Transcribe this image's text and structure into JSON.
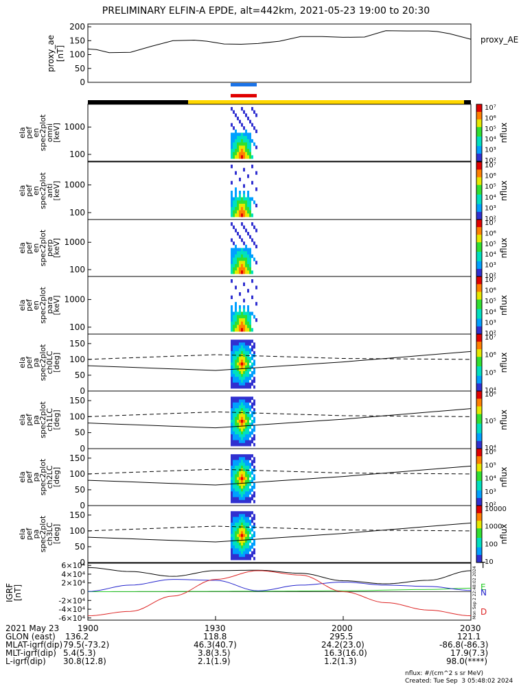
{
  "title": "PRELIMINARY ELFIN-A EPDE, alt=442km, 2021-05-23 19:00 to 20:30",
  "colors": {
    "blue_bar": "#1a73e8",
    "red_bar": "#e00000",
    "night": "#000000",
    "day": "#ffd700"
  },
  "chart_data": [
    {
      "type": "line",
      "id": "proxy_ae",
      "ylabel": [
        "proxy_ae",
        "[nT]"
      ],
      "right_label": "proxy_AE",
      "yticks": [
        "0",
        "50",
        "100",
        "150",
        "200"
      ],
      "ylim": [
        0,
        210
      ],
      "x": [
        0,
        2,
        5,
        10,
        15,
        20,
        25,
        28,
        32,
        36,
        40,
        45,
        50,
        55,
        60,
        65,
        70,
        75,
        80,
        82,
        85,
        88,
        90
      ],
      "y": [
        120,
        118,
        107,
        108,
        130,
        150,
        152,
        148,
        138,
        137,
        140,
        148,
        165,
        165,
        162,
        163,
        186,
        185,
        185,
        183,
        175,
        163,
        155
      ]
    },
    {
      "type": "spectrogram",
      "id": "en_spec_omni",
      "ylabel": [
        "ela",
        "pef",
        "en",
        "spec2plot",
        "omni",
        "[keV]"
      ],
      "yticks": [
        "100",
        "1000"
      ],
      "colorbar_ticks": [
        "10^2",
        "10^3",
        "10^4",
        "10^5",
        "10^6",
        "10^7"
      ],
      "colorbar_label": "nflux"
    },
    {
      "type": "spectrogram",
      "id": "en_spec_anti",
      "ylabel": [
        "ela",
        "pef",
        "en",
        "spec2plot",
        "anti",
        "[keV]"
      ],
      "yticks": [
        "100",
        "1000"
      ],
      "colorbar_ticks": [
        "10^2",
        "10^3",
        "10^4",
        "10^5",
        "10^6",
        "10^7"
      ],
      "colorbar_label": "nflux"
    },
    {
      "type": "spectrogram",
      "id": "en_spec_perp",
      "ylabel": [
        "ela",
        "pef",
        "en",
        "spec2plot",
        "perp",
        "[keV]"
      ],
      "yticks": [
        "100",
        "1000"
      ],
      "colorbar_ticks": [
        "10^2",
        "10^3",
        "10^4",
        "10^5",
        "10^6",
        "10^7"
      ],
      "colorbar_label": "nflux"
    },
    {
      "type": "spectrogram",
      "id": "en_spec_para",
      "ylabel": [
        "ela",
        "pef",
        "en",
        "spec2plot",
        "para",
        "[keV]"
      ],
      "yticks": [
        "100",
        "1000"
      ],
      "colorbar_ticks": [
        "10^2",
        "10^3",
        "10^4",
        "10^5",
        "10^6",
        "10^7"
      ],
      "colorbar_label": "nflux"
    },
    {
      "type": "spectrogram",
      "id": "pa_ch0",
      "ylabel": [
        "ela",
        "pef",
        "pa",
        "spec2plot",
        "ch0LC",
        "[deg]"
      ],
      "yticks": [
        "0",
        "50",
        "100",
        "150"
      ],
      "colorbar_ticks": [
        "10^4",
        "10^5",
        "10^6",
        "10^7"
      ],
      "colorbar_label": "nflux"
    },
    {
      "type": "spectrogram",
      "id": "pa_ch1",
      "ylabel": [
        "ela",
        "pef",
        "pa",
        "spec2plot",
        "ch1LC",
        "[deg]"
      ],
      "yticks": [
        "0",
        "50",
        "100",
        "150"
      ],
      "colorbar_ticks": [
        "10^4",
        "10^5",
        "10^6"
      ],
      "colorbar_label": "nflux"
    },
    {
      "type": "spectrogram",
      "id": "pa_ch2",
      "ylabel": [
        "ela",
        "pef",
        "pa",
        "spec2plot",
        "ch2LC",
        "[deg]"
      ],
      "yticks": [
        "0",
        "50",
        "100",
        "150"
      ],
      "colorbar_ticks": [
        "10^2",
        "10^3",
        "10^4",
        "10^5",
        "10^6"
      ],
      "colorbar_label": "nflux"
    },
    {
      "type": "spectrogram",
      "id": "pa_ch3",
      "ylabel": [
        "ela",
        "pef",
        "pa",
        "spec2plot",
        "ch3LC",
        "[deg]"
      ],
      "yticks": [
        "0",
        "50",
        "100",
        "150"
      ],
      "colorbar_ticks": [
        "10",
        "100",
        "1000",
        "10000"
      ],
      "colorbar_label": "nflux"
    },
    {
      "type": "line",
      "id": "igrf",
      "ylabel": [
        "IGRF",
        "[nT]"
      ],
      "yticks": [
        "-6×10^4",
        "-4×10^4",
        "-2×10^4",
        "0",
        "2×10^4",
        "4×10^4",
        "6×10^4"
      ],
      "ylim": [
        -65000,
        65000
      ],
      "series": [
        {
          "name": "T",
          "color": "#000000",
          "x": [
            0,
            10,
            20,
            30,
            40,
            50,
            60,
            70,
            80,
            90
          ],
          "y": [
            55000,
            46000,
            35000,
            48000,
            49000,
            42000,
            25000,
            18000,
            26000,
            48000
          ]
        },
        {
          "name": "E",
          "color": "#22cc22",
          "x": [
            0,
            20,
            40,
            60,
            80,
            90
          ],
          "y": [
            0,
            500,
            1000,
            2000,
            5000,
            8000
          ]
        },
        {
          "name": "N",
          "color": "#2222cc",
          "x": [
            0,
            10,
            20,
            30,
            40,
            50,
            60,
            70,
            80,
            90
          ],
          "y": [
            500,
            15000,
            28000,
            26000,
            2000,
            15000,
            22000,
            15000,
            12000,
            3000
          ]
        },
        {
          "name": "D",
          "color": "#dd2222",
          "x": [
            0,
            10,
            20,
            30,
            40,
            50,
            60,
            70,
            80,
            90
          ],
          "y": [
            -55000,
            -45000,
            -10000,
            28000,
            48000,
            38000,
            0,
            -25000,
            -42000,
            -55000
          ]
        }
      ]
    }
  ],
  "xaxis": {
    "ticks": [
      "1900",
      "1930",
      "2000",
      "2030"
    ]
  },
  "footer": {
    "date": "2021 May 23",
    "rows": [
      {
        "label": "GLON (east)",
        "values": [
          "136.2",
          "118.8",
          "295.5",
          "121.1"
        ]
      },
      {
        "label": "MLAT-igrf(dip)",
        "values": [
          "79.5(-73.2)",
          "46.3(40.7)",
          "24.2(23.0)",
          "-86.8(-86.3)"
        ]
      },
      {
        "label": "MLT-igrf(dip)",
        "values": [
          "5.4(5.3)",
          "3.8(3.5)",
          "16.3(16.0)",
          "17.9(7.3)"
        ]
      },
      {
        "label": "L-igrf(dip)",
        "values": [
          "30.8(12.8)",
          "2.1(1.9)",
          "1.2(1.3)",
          "98.0(****)"
        ]
      }
    ],
    "units_note": "nflux: #/(cm^2 s sr MeV)",
    "created": "Created: Tue Sep  3 05:48:02 2024",
    "vertical_stamp": "Mon Sep  2 22:48:02 2024"
  }
}
